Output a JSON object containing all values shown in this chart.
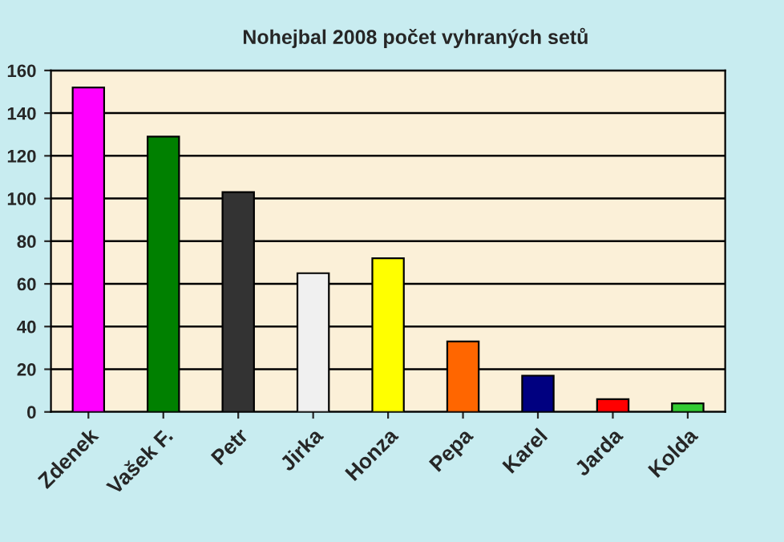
{
  "chart_data": {
    "type": "bar",
    "title": "Nohejbal 2008 počet vyhraných setů",
    "categories": [
      "Zdenek",
      "Vašek F.",
      "Petr",
      "Jirka",
      "Honza",
      "Pepa",
      "Karel",
      "Jarda",
      "Kolda"
    ],
    "values": [
      152,
      129,
      103,
      65,
      72,
      33,
      17,
      6,
      4
    ],
    "colors": [
      "#ff00ff",
      "#008000",
      "#333333",
      "#f0f0f0",
      "#ffff00",
      "#ff6600",
      "#000080",
      "#ff0000",
      "#33cc33"
    ],
    "ylim": [
      0,
      160
    ],
    "yticks": [
      0,
      20,
      40,
      60,
      80,
      100,
      120,
      140,
      160
    ],
    "grid": "y"
  }
}
